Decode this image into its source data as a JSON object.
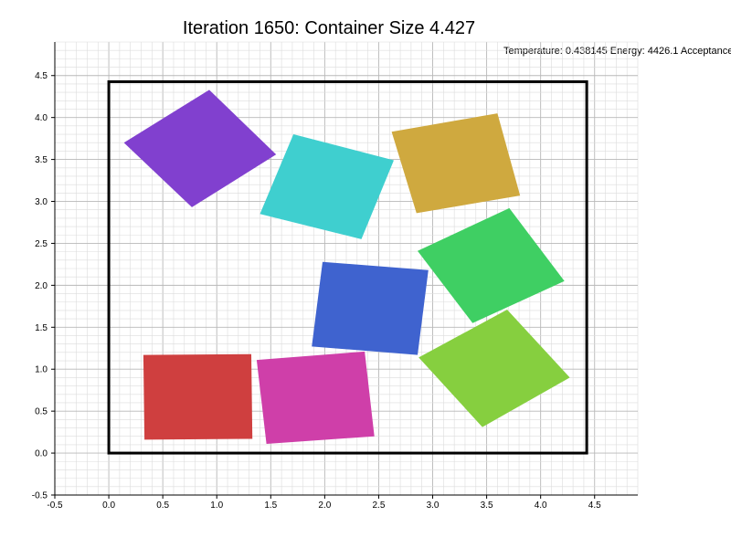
{
  "title": "Iteration 1650: Container Size 4.427",
  "status_text": "Temperature: 0.438145 Energy: 4426.1 Acceptance",
  "chart_data": {
    "type": "scatter",
    "xlim": [
      -0.5,
      4.9
    ],
    "ylim": [
      -0.5,
      4.9
    ],
    "xticks": [
      -0.5,
      0.0,
      0.5,
      1.0,
      1.5,
      2.0,
      2.5,
      3.0,
      3.5,
      4.0,
      4.5
    ],
    "yticks": [
      -0.5,
      0.0,
      0.5,
      1.0,
      1.5,
      2.0,
      2.5,
      3.0,
      3.5,
      4.0,
      4.5
    ],
    "xtick_labels": [
      "-0.5",
      "0.0",
      "0.5",
      "1.0",
      "1.5",
      "2.0",
      "2.5",
      "3.0",
      "3.5",
      "4.0",
      "4.5"
    ],
    "ytick_labels": [
      "-0.5",
      "0.0",
      "0.5",
      "1.0",
      "1.5",
      "2.0",
      "2.5",
      "3.0",
      "3.5",
      "4.0",
      "4.5"
    ],
    "grid": true,
    "container": {
      "x0": 0.0,
      "y0": 0.0,
      "x1": 4.427,
      "y1": 4.427,
      "color": "#000000"
    },
    "squares": [
      {
        "name": "purple",
        "color": "#8140cf",
        "points": [
          [
            0.14,
            3.7
          ],
          [
            0.93,
            4.33
          ],
          [
            1.55,
            3.56
          ],
          [
            0.77,
            2.93
          ]
        ]
      },
      {
        "name": "cyan",
        "color": "#3fcfcf",
        "points": [
          [
            1.71,
            3.8
          ],
          [
            2.64,
            3.49
          ],
          [
            2.34,
            2.55
          ],
          [
            1.4,
            2.85
          ]
        ]
      },
      {
        "name": "gold",
        "color": "#cfa93f",
        "points": [
          [
            2.62,
            3.83
          ],
          [
            3.6,
            4.05
          ],
          [
            3.81,
            3.07
          ],
          [
            2.85,
            2.86
          ]
        ]
      },
      {
        "name": "green",
        "color": "#3fcf63",
        "points": [
          [
            2.86,
            2.41
          ],
          [
            3.71,
            2.92
          ],
          [
            4.22,
            2.05
          ],
          [
            3.37,
            1.55
          ]
        ]
      },
      {
        "name": "blue",
        "color": "#3f63cf",
        "points": [
          [
            1.98,
            2.28
          ],
          [
            2.96,
            2.18
          ],
          [
            2.86,
            1.17
          ],
          [
            1.88,
            1.27
          ]
        ]
      },
      {
        "name": "lime",
        "color": "#86cf3f",
        "points": [
          [
            2.87,
            1.14
          ],
          [
            3.69,
            1.71
          ],
          [
            4.27,
            0.9
          ],
          [
            3.46,
            0.31
          ]
        ]
      },
      {
        "name": "red",
        "color": "#cf3f3f",
        "points": [
          [
            0.32,
            1.17
          ],
          [
            1.32,
            1.18
          ],
          [
            1.33,
            0.17
          ],
          [
            0.33,
            0.16
          ]
        ]
      },
      {
        "name": "magenta",
        "color": "#cf3fa9",
        "points": [
          [
            1.37,
            1.11
          ],
          [
            2.37,
            1.21
          ],
          [
            2.46,
            0.2
          ],
          [
            1.46,
            0.11
          ]
        ]
      }
    ]
  }
}
